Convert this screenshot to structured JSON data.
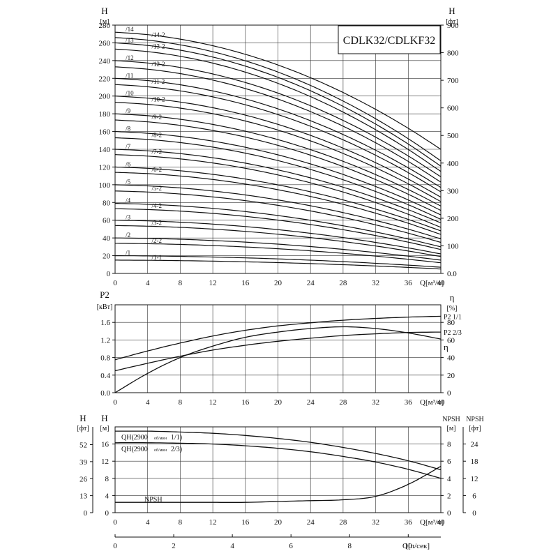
{
  "chart_data": [
    {
      "type": "line",
      "title": "CDLK32/CDLKF32",
      "ylabel_left": "H",
      "yunit_left": "[м]",
      "ylabel_right": "H",
      "yunit_right": "[фт]",
      "xlabel": "Q[м³/ч]",
      "xlim": [
        0,
        40
      ],
      "ylim": [
        0,
        280
      ],
      "ylim_right": [
        0,
        900
      ],
      "x_ticks": [
        0,
        4,
        8,
        12,
        16,
        20,
        24,
        28,
        32,
        36,
        40
      ],
      "y_ticks_left": [
        0,
        20,
        40,
        60,
        80,
        100,
        120,
        140,
        160,
        180,
        200,
        220,
        240,
        260,
        280
      ],
      "y_ticks_right": [
        "0.0",
        "100",
        "200",
        "300",
        "400",
        "500",
        "600",
        "700",
        "800",
        "900"
      ],
      "curves_x": [
        0,
        4,
        8,
        12,
        16,
        20,
        24,
        28,
        32,
        36,
        40
      ],
      "curves": [
        {
          "label": "/1-1",
          "shutoff": 15,
          "end": 5
        },
        {
          "label": "/1",
          "shutoff": 20,
          "end": 7
        },
        {
          "label": "/2-2",
          "shutoff": 34,
          "end": 12
        },
        {
          "label": "/2",
          "shutoff": 40,
          "end": 15
        },
        {
          "label": "/3-2",
          "shutoff": 54,
          "end": 19
        },
        {
          "label": "/3",
          "shutoff": 60,
          "end": 22
        },
        {
          "label": "/4-2",
          "shutoff": 73,
          "end": 27
        },
        {
          "label": "/4",
          "shutoff": 79,
          "end": 30
        },
        {
          "label": "/5-2",
          "shutoff": 93,
          "end": 35
        },
        {
          "label": "/5",
          "shutoff": 100,
          "end": 39
        },
        {
          "label": "/6-2",
          "shutoff": 114,
          "end": 44
        },
        {
          "label": "/6",
          "shutoff": 120,
          "end": 48
        },
        {
          "label": "/7-2",
          "shutoff": 134,
          "end": 52
        },
        {
          "label": "/7",
          "shutoff": 140,
          "end": 57
        },
        {
          "label": "/8-2",
          "shutoff": 153,
          "end": 61
        },
        {
          "label": "/8",
          "shutoff": 160,
          "end": 66
        },
        {
          "label": "/9-2",
          "shutoff": 173,
          "end": 71
        },
        {
          "label": "/9",
          "shutoff": 180,
          "end": 76
        },
        {
          "label": "/10-2",
          "shutoff": 193,
          "end": 81
        },
        {
          "label": "/10",
          "shutoff": 200,
          "end": 86
        },
        {
          "label": "/11-2",
          "shutoff": 213,
          "end": 92
        },
        {
          "label": "/11",
          "shutoff": 220,
          "end": 97
        },
        {
          "label": "/12-2",
          "shutoff": 233,
          "end": 103
        },
        {
          "label": "/12",
          "shutoff": 240,
          "end": 109
        },
        {
          "label": "/13-2",
          "shutoff": 253,
          "end": 115
        },
        {
          "label": "/13",
          "shutoff": 260,
          "end": 121
        },
        {
          "label": "/14-2",
          "shutoff": 266,
          "end": 127
        },
        {
          "label": "/14",
          "shutoff": 272,
          "end": 140
        }
      ]
    },
    {
      "type": "line",
      "ylabel_left": "P2",
      "yunit_left": "[кВт]",
      "ylabel_right": "η",
      "yunit_right": "[%]",
      "xlabel": "Q[м³/ч]",
      "xlim": [
        0,
        40
      ],
      "ylim": [
        0,
        2.0
      ],
      "ylim_right": [
        0,
        100
      ],
      "x_ticks": [
        0,
        4,
        8,
        12,
        16,
        20,
        24,
        28,
        32,
        36,
        40
      ],
      "y_ticks_left": [
        "0.0",
        "0.4",
        "0.8",
        "1.2",
        "1.6"
      ],
      "y_ticks_right": [
        "0",
        "20",
        "40",
        "60",
        "80"
      ],
      "x": [
        0,
        4,
        8,
        12,
        16,
        20,
        24,
        28,
        32,
        36,
        40
      ],
      "series": [
        {
          "name": "P2 1/1",
          "axis": "left",
          "values": [
            0.75,
            0.95,
            1.13,
            1.29,
            1.42,
            1.52,
            1.59,
            1.65,
            1.69,
            1.72,
            1.74
          ]
        },
        {
          "name": "P2 2/3",
          "axis": "left",
          "values": [
            0.5,
            0.67,
            0.83,
            0.97,
            1.08,
            1.17,
            1.24,
            1.3,
            1.34,
            1.37,
            1.38
          ]
        },
        {
          "name": "η",
          "axis": "right",
          "values": [
            0,
            22,
            40,
            53,
            63,
            69,
            73,
            75,
            73,
            68,
            61
          ]
        }
      ]
    },
    {
      "type": "line",
      "ylabel_left_outer": "H",
      "yunit_left_outer": "[фт]",
      "ylabel_left": "H",
      "yunit_left": "[м]",
      "ylabel_right": "NPSH",
      "yunit_right": "[м]",
      "ylabel_right_outer": "NPSH",
      "yunit_right_outer": "[фт]",
      "xlabel": "Q[м³/ч]",
      "xlabel_bottom": "Q[л/сек]",
      "xlim": [
        0,
        40
      ],
      "ylim": [
        0,
        20
      ],
      "x_ticks": [
        0,
        4,
        8,
        12,
        16,
        20,
        24,
        28,
        32,
        36,
        40
      ],
      "x_ticks_bottom": [
        0,
        2,
        4,
        6,
        8,
        10
      ],
      "y_ticks_left": [
        "0",
        "4",
        "8",
        "12",
        "16"
      ],
      "y_ticks_left_outer": [
        "0",
        "13",
        "26",
        "39",
        "52"
      ],
      "y_ticks_right": [
        "0",
        "2",
        "4",
        "6",
        "8"
      ],
      "y_ticks_right_outer": [
        "0",
        "6",
        "12",
        "18",
        "24"
      ],
      "x": [
        0,
        4,
        8,
        12,
        16,
        20,
        24,
        28,
        32,
        36,
        40
      ],
      "series": [
        {
          "name": "QH(2900 об/мин 1/1)",
          "axis": "left",
          "label_main": "QH(2900",
          "label_sub": "об/мин",
          "label_end": "1/1)",
          "values": [
            19.0,
            19.0,
            18.8,
            18.5,
            18.0,
            17.3,
            16.4,
            15.2,
            13.8,
            12.1,
            10.0
          ]
        },
        {
          "name": "QH(2900 об/мин 2/3)",
          "axis": "left",
          "label_main": "QH(2900",
          "label_sub": "об/мин",
          "label_end": "2/3)",
          "values": [
            16.3,
            16.3,
            16.2,
            16.0,
            15.6,
            15.0,
            14.2,
            13.1,
            11.8,
            10.1,
            8.0
          ]
        },
        {
          "name": "NPSH",
          "axis": "right",
          "label_main": "NPSH",
          "values": [
            1.2,
            1.2,
            1.2,
            1.2,
            1.2,
            1.3,
            1.4,
            1.5,
            1.9,
            3.3,
            5.4
          ]
        }
      ]
    }
  ]
}
